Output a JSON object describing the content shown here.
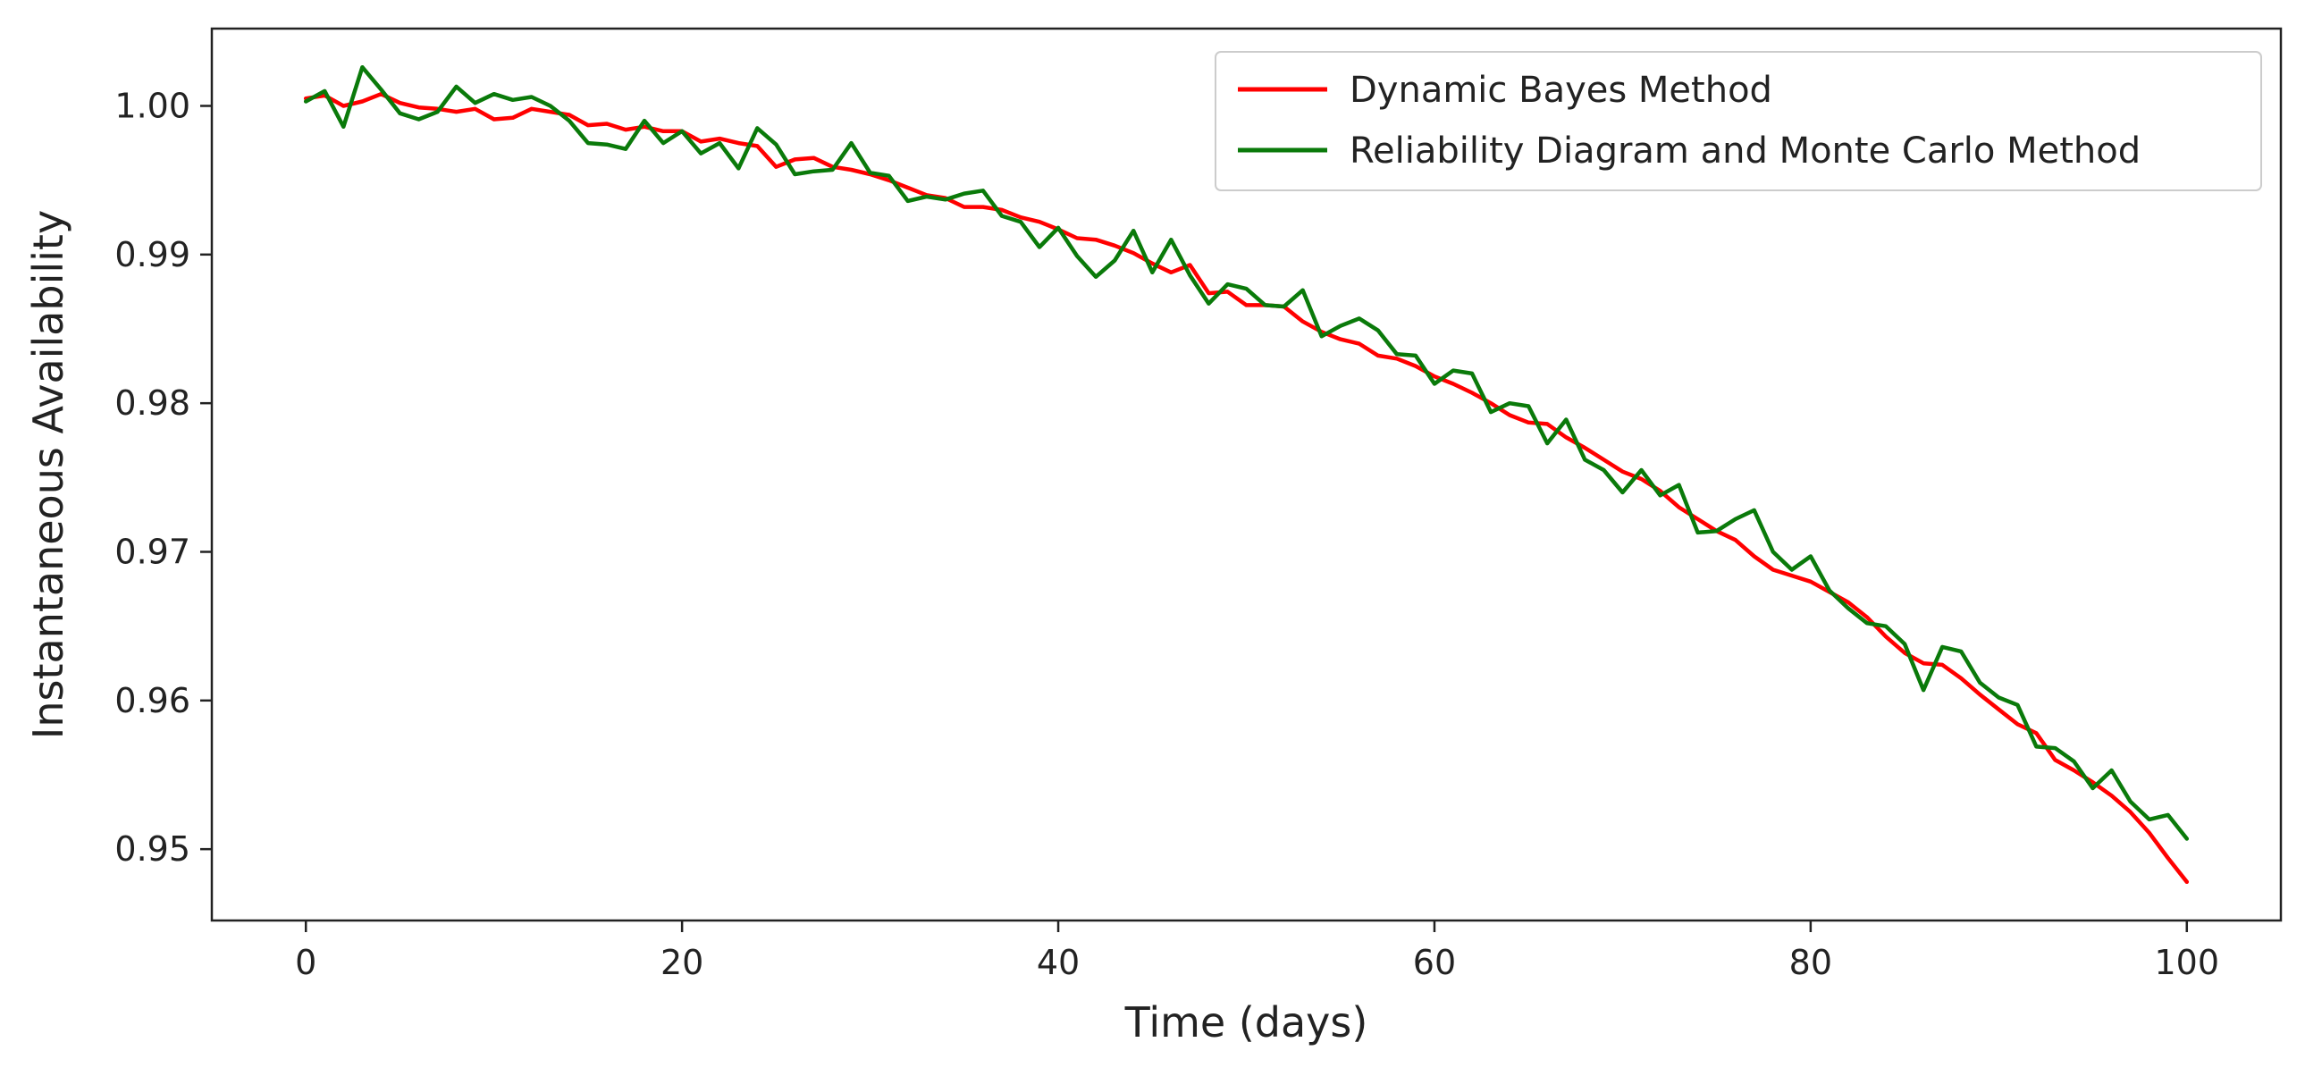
{
  "chart_data": {
    "type": "line",
    "title": "",
    "xlabel": "Time (days)",
    "ylabel": "Instantaneous Availability",
    "xlim": [
      -5,
      105
    ],
    "ylim": [
      0.9452,
      1.0052
    ],
    "xticks": [
      0,
      20,
      40,
      60,
      80,
      100
    ],
    "xtick_labels": [
      "0",
      "20",
      "40",
      "60",
      "80",
      "100"
    ],
    "yticks": [
      0.95,
      0.96,
      0.97,
      0.98,
      0.99,
      1.0
    ],
    "ytick_labels": [
      "0.95",
      "0.96",
      "0.97",
      "0.98",
      "0.99",
      "1.00"
    ],
    "grid": false,
    "legend_position": "top-right",
    "series": [
      {
        "name": "Dynamic Bayes Method",
        "color": "#ff0000",
        "x": [
          0,
          1,
          2,
          3,
          4,
          5,
          6,
          7,
          8,
          9,
          10,
          11,
          12,
          13,
          14,
          15,
          16,
          17,
          18,
          19,
          20,
          21,
          22,
          23,
          24,
          25,
          26,
          27,
          28,
          29,
          30,
          31,
          32,
          33,
          34,
          35,
          36,
          37,
          38,
          39,
          40,
          41,
          42,
          43,
          44,
          45,
          46,
          47,
          48,
          49,
          50,
          51,
          52,
          53,
          54,
          55,
          56,
          57,
          58,
          59,
          60,
          61,
          62,
          63,
          64,
          65,
          66,
          67,
          68,
          69,
          70,
          71,
          72,
          73,
          74,
          75,
          76,
          77,
          78,
          79,
          80,
          81,
          82,
          83,
          84,
          85,
          86,
          87,
          88,
          89,
          90,
          91,
          92,
          93,
          94,
          95,
          96,
          97,
          98,
          99,
          100
        ],
        "values": [
          1.0005,
          1.0007,
          1.0,
          1.0003,
          1.0008,
          1.0002,
          0.9999,
          0.9998,
          0.9996,
          0.9998,
          0.9991,
          0.9992,
          0.9998,
          0.9996,
          0.9994,
          0.9987,
          0.9988,
          0.9984,
          0.9986,
          0.9983,
          0.9983,
          0.9976,
          0.9978,
          0.9975,
          0.9973,
          0.9959,
          0.9964,
          0.9965,
          0.9959,
          0.9957,
          0.9954,
          0.995,
          0.9945,
          0.994,
          0.9938,
          0.9932,
          0.9932,
          0.993,
          0.9925,
          0.9922,
          0.9917,
          0.9911,
          0.991,
          0.9906,
          0.9901,
          0.9894,
          0.9888,
          0.9893,
          0.9874,
          0.9875,
          0.9866,
          0.9866,
          0.9865,
          0.9855,
          0.9848,
          0.9843,
          0.984,
          0.9832,
          0.983,
          0.9825,
          0.9818,
          0.9813,
          0.9807,
          0.98,
          0.9792,
          0.9787,
          0.9786,
          0.9777,
          0.977,
          0.9762,
          0.9754,
          0.9749,
          0.9741,
          0.973,
          0.9722,
          0.9714,
          0.9708,
          0.9697,
          0.9688,
          0.9684,
          0.968,
          0.9673,
          0.9666,
          0.9656,
          0.9643,
          0.9632,
          0.9625,
          0.9624,
          0.9615,
          0.9604,
          0.9594,
          0.9584,
          0.9578,
          0.956,
          0.9553,
          0.9545,
          0.9536,
          0.9525,
          0.9511,
          0.9494,
          0.9478
        ]
      },
      {
        "name": "Reliability Diagram and Monte Carlo Method",
        "color": "#0a7a0a",
        "x": [
          0,
          1,
          2,
          3,
          4,
          5,
          6,
          7,
          8,
          9,
          10,
          11,
          12,
          13,
          14,
          15,
          16,
          17,
          18,
          19,
          20,
          21,
          22,
          23,
          24,
          25,
          26,
          27,
          28,
          29,
          30,
          31,
          32,
          33,
          34,
          35,
          36,
          37,
          38,
          39,
          40,
          41,
          42,
          43,
          44,
          45,
          46,
          47,
          48,
          49,
          50,
          51,
          52,
          53,
          54,
          55,
          56,
          57,
          58,
          59,
          60,
          61,
          62,
          63,
          64,
          65,
          66,
          67,
          68,
          69,
          70,
          71,
          72,
          73,
          74,
          75,
          76,
          77,
          78,
          79,
          80,
          81,
          82,
          83,
          84,
          85,
          86,
          87,
          88,
          89,
          90,
          91,
          92,
          93,
          94,
          95,
          96,
          97,
          98,
          99,
          100
        ],
        "values": [
          1.0003,
          1.001,
          0.9986,
          1.0026,
          1.0011,
          0.9995,
          0.9991,
          0.9996,
          1.0013,
          1.0002,
          1.0008,
          1.0004,
          1.0006,
          1.0,
          0.999,
          0.9975,
          0.9974,
          0.9971,
          0.999,
          0.9975,
          0.9983,
          0.9968,
          0.9975,
          0.9958,
          0.9985,
          0.9974,
          0.9954,
          0.9956,
          0.9957,
          0.9975,
          0.9955,
          0.9953,
          0.9936,
          0.9939,
          0.9937,
          0.9941,
          0.9943,
          0.9926,
          0.9922,
          0.9905,
          0.9918,
          0.9899,
          0.9885,
          0.9896,
          0.9916,
          0.9888,
          0.991,
          0.9886,
          0.9867,
          0.988,
          0.9877,
          0.9866,
          0.9865,
          0.9876,
          0.9845,
          0.9852,
          0.9857,
          0.9849,
          0.9833,
          0.9832,
          0.9813,
          0.9822,
          0.982,
          0.9794,
          0.98,
          0.9798,
          0.9773,
          0.9789,
          0.9762,
          0.9755,
          0.974,
          0.9755,
          0.9738,
          0.9745,
          0.9713,
          0.9714,
          0.9722,
          0.9728,
          0.97,
          0.9688,
          0.9697,
          0.9674,
          0.9662,
          0.9652,
          0.965,
          0.9638,
          0.9607,
          0.9636,
          0.9633,
          0.9612,
          0.9602,
          0.9597,
          0.9569,
          0.9568,
          0.9559,
          0.9541,
          0.9553,
          0.9532,
          0.952,
          0.9523,
          0.9507
        ]
      }
    ]
  }
}
